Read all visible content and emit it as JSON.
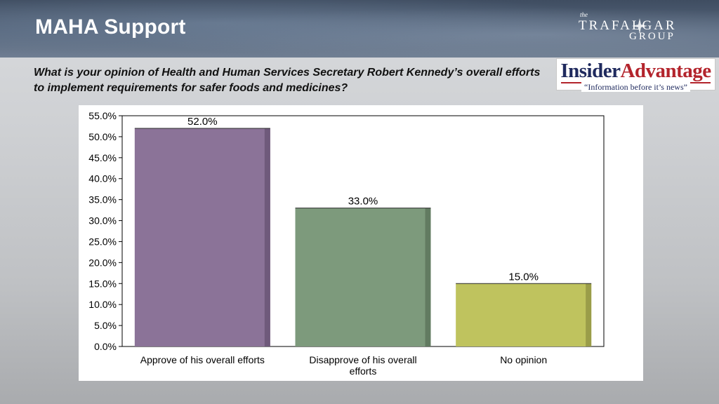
{
  "header": {
    "title": "MAHA Support",
    "logo": {
      "the": "the",
      "line1": "TRAFALGAR",
      "line2": "GROUP"
    }
  },
  "question": "What is your opinion of Health and Human Services Secretary Robert Kennedy’s overall efforts to implement requirements for safer foods and medicines?",
  "partner_logo": {
    "name_part1": "Insider",
    "name_part2": "Advantage",
    "tagline": "“Information before it’s news”",
    "colors": {
      "navy": "#1f2a5e",
      "red": "#b3242c"
    }
  },
  "chart_data": {
    "type": "bar",
    "categories": [
      "Approve of his overall efforts",
      "Disapprove of his overall efforts",
      "No opinion"
    ],
    "category_lines": [
      [
        "Approve of his overall efforts"
      ],
      [
        "Disapprove of his overall",
        "efforts"
      ],
      [
        "No opinion"
      ]
    ],
    "values": [
      52.0,
      33.0,
      15.0
    ],
    "value_labels": [
      "52.0%",
      "33.0%",
      "15.0%"
    ],
    "colors": [
      "#8b7398",
      "#7d9a7c",
      "#bfc35e"
    ],
    "side_colors": [
      "#6f5a7b",
      "#627b61",
      "#9a9d49"
    ],
    "title": "",
    "xlabel": "",
    "ylabel": "",
    "ylim": [
      0,
      55
    ],
    "ytick_values": [
      0,
      5,
      10,
      15,
      20,
      25,
      30,
      35,
      40,
      45,
      50,
      55
    ],
    "ytick_labels": [
      "0.0%",
      "5.0%",
      "10.0%",
      "15.0%",
      "20.0%",
      "25.0%",
      "30.0%",
      "35.0%",
      "40.0%",
      "45.0%",
      "50.0%",
      "55.0%"
    ],
    "grid": false,
    "legend": "none"
  }
}
